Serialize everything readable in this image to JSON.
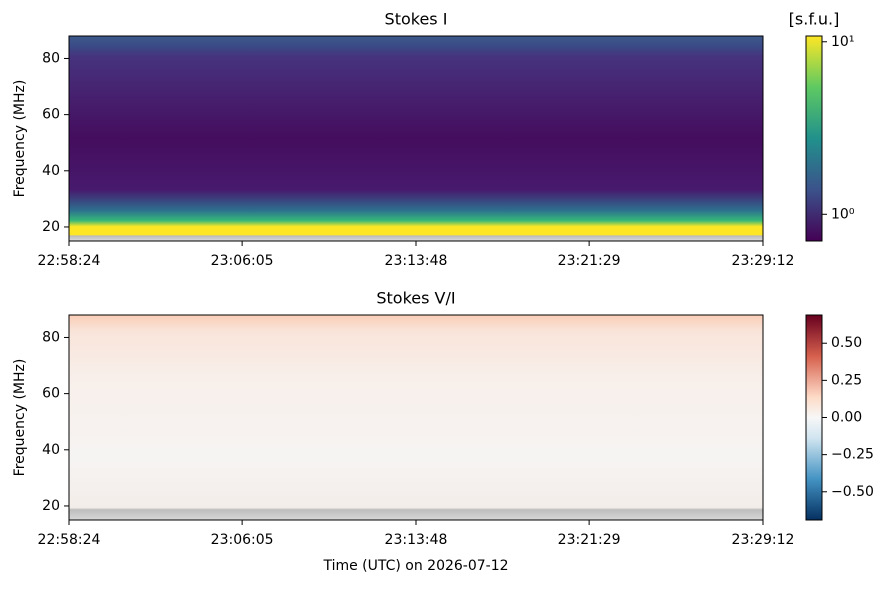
{
  "chart_data": [
    {
      "type": "spectrogram",
      "title": "Stokes I",
      "ylabel": "Frequency (MHz)",
      "xlim": [
        "22:58:24",
        "23:29:12"
      ],
      "xticks": [
        "22:58:24",
        "23:06:05",
        "23:13:48",
        "23:21:29",
        "23:29:12"
      ],
      "ylim": [
        15,
        88
      ],
      "yticks": [
        20,
        40,
        60,
        80
      ],
      "colorbar": {
        "label": "[s.f.u.]",
        "colormap": "viridis",
        "scale": "log",
        "lim": [
          0.7,
          10.8
        ],
        "ticks": [
          {
            "value": 1,
            "label": "10⁰"
          },
          {
            "value": 10,
            "label": "10¹"
          }
        ]
      }
    },
    {
      "type": "spectrogram",
      "title": "Stokes V/I",
      "ylabel": "Frequency (MHz)",
      "xlabel": "Time (UTC) on 2026-07-12",
      "xlim": [
        "22:58:24",
        "23:29:12"
      ],
      "xticks": [
        "22:58:24",
        "23:06:05",
        "23:13:48",
        "23:21:29",
        "23:29:12"
      ],
      "ylim": [
        15,
        88
      ],
      "yticks": [
        20,
        40,
        60,
        80
      ],
      "colorbar": {
        "colormap": "RdBu_r",
        "scale": "linear",
        "lim": [
          -0.69,
          0.69
        ],
        "ticks": [
          {
            "value": 0.5,
            "label": "0.50"
          },
          {
            "value": 0.25,
            "label": "0.25"
          },
          {
            "value": 0,
            "label": "0.00"
          },
          {
            "value": -0.25,
            "label": "−0.25"
          },
          {
            "value": -0.5,
            "label": "−0.50"
          }
        ]
      }
    }
  ]
}
